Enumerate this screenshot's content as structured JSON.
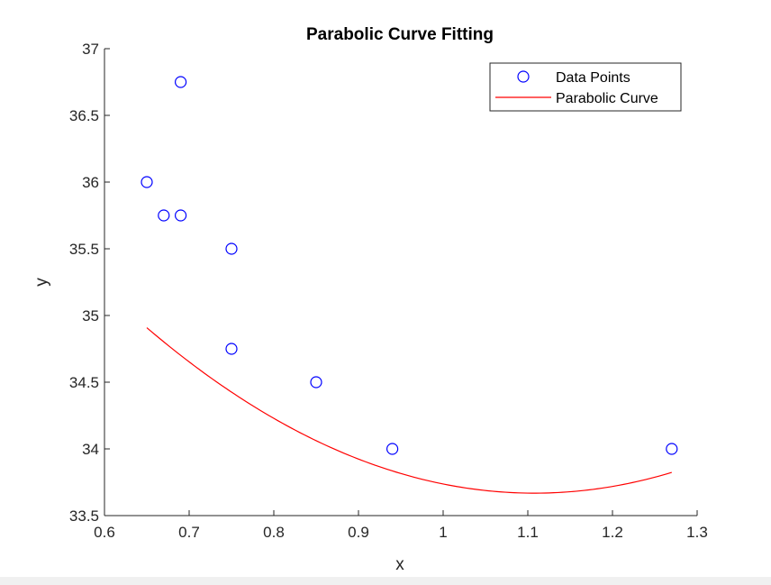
{
  "chart_data": {
    "type": "scatter",
    "title": "Parabolic Curve Fitting",
    "xlabel": "x",
    "ylabel": "y",
    "xlim": [
      0.6,
      1.3
    ],
    "ylim": [
      33.5,
      37
    ],
    "xticks": [
      "0.6",
      "0.7",
      "0.8",
      "0.9",
      "1",
      "1.1",
      "1.2",
      "1.3"
    ],
    "yticks": [
      "33.5",
      "34",
      "34.5",
      "35",
      "35.5",
      "36",
      "36.5",
      "37"
    ],
    "grid": false,
    "legend_position": "top-right",
    "series": [
      {
        "name": "Data Points",
        "kind": "scatter",
        "marker": "circle",
        "color": "#0000ff",
        "x": [
          0.65,
          0.67,
          0.69,
          0.69,
          0.75,
          0.75,
          0.85,
          0.94,
          1.27
        ],
        "y": [
          36.0,
          35.75,
          35.75,
          36.75,
          35.5,
          34.75,
          34.5,
          34.0,
          34.0
        ]
      },
      {
        "name": "Parabolic Curve",
        "kind": "line",
        "color": "#ff0000",
        "x_range": [
          0.65,
          1.27
        ],
        "coefficients": {
          "a": 5.917,
          "b": -13.11,
          "c": 40.93
        }
      }
    ]
  }
}
